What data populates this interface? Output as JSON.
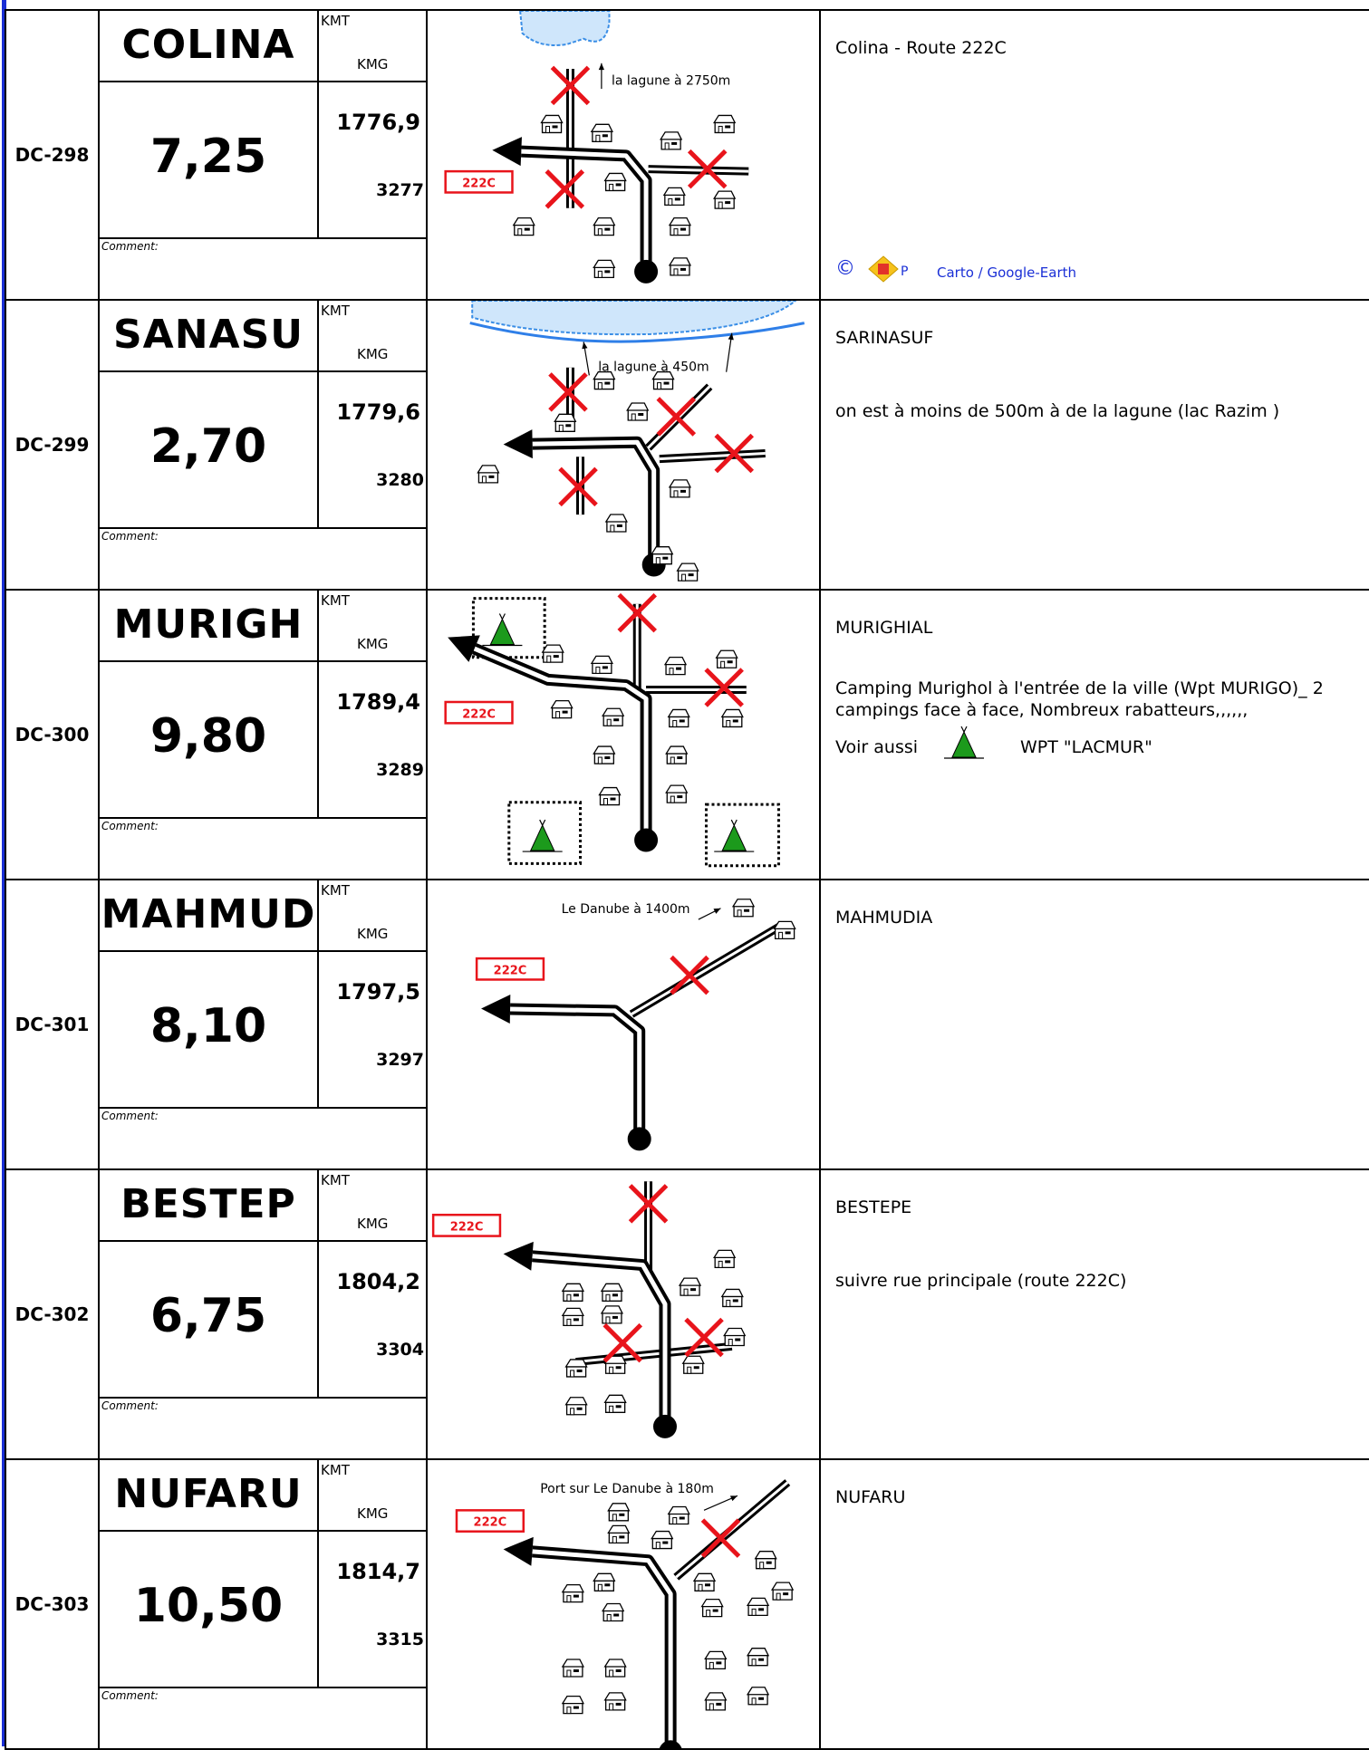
{
  "rows": [
    {
      "id": "DC-298",
      "name": "COLINA",
      "kmt_label": "KMT",
      "kmg_label": "KMG",
      "distance": "7,25",
      "kmt": "1776,9",
      "kmg": "3277",
      "comment_label": "Comment:",
      "diagram": {
        "route": "222C",
        "labels": [
          "la lagune à 2750m"
        ]
      },
      "title": "Colina - Route 222C",
      "credits": {
        "symbol": "©",
        "letter": "P",
        "text": "Carto / Google-Earth"
      }
    },
    {
      "id": "DC-299",
      "name": "SANASU",
      "kmt_label": "KMT",
      "kmg_label": "KMG",
      "distance": "2,70",
      "kmt": "1779,6",
      "kmg": "3280",
      "comment_label": "Comment:",
      "diagram": {
        "labels": [
          "la lagune à 450m"
        ]
      },
      "title": "SARINASUF",
      "body": "on est à moins de 500m à de la lagune (lac Razim )"
    },
    {
      "id": "DC-300",
      "name": "MURIGH",
      "kmt_label": "KMT",
      "kmg_label": "KMG",
      "distance": "9,80",
      "kmt": "1789,4",
      "kmg": "3289",
      "comment_label": "Comment:",
      "diagram": {
        "route": "222C",
        "labels": []
      },
      "title": "MURIGHIAL",
      "body": "Camping Murighol à l'entrée de la ville (Wpt MURIGO)_ 2 campings face à face,  Nombreux rabatteurs,,,,,,",
      "see_also": {
        "text": "Voir aussi",
        "wpt": "WPT \"LACMUR\""
      }
    },
    {
      "id": "DC-301",
      "name": "MAHMUD",
      "kmt_label": "KMT",
      "kmg_label": "KMG",
      "distance": "8,10",
      "kmt": "1797,5",
      "kmg": "3297",
      "comment_label": "Comment:",
      "diagram": {
        "route": "222C",
        "labels": [
          "Le Danube à 1400m"
        ]
      },
      "title": "MAHMUDIA"
    },
    {
      "id": "DC-302",
      "name": "BESTEP",
      "kmt_label": "KMT",
      "kmg_label": "KMG",
      "distance": "6,75",
      "kmt": "1804,2",
      "kmg": "3304",
      "comment_label": "Comment:",
      "diagram": {
        "route": "222C",
        "labels": []
      },
      "title": "BESTEPE",
      "body": "suivre rue principale (route 222C)"
    },
    {
      "id": "DC-303",
      "name": "NUFARU",
      "kmt_label": "KMT",
      "kmg_label": "KMG",
      "distance": "10,50",
      "kmt": "1814,7",
      "kmg": "3315",
      "comment_label": "Comment:",
      "diagram": {
        "route": "222C",
        "labels": [
          "Port sur Le Danube à 180m"
        ]
      },
      "title": "NUFARU"
    }
  ]
}
